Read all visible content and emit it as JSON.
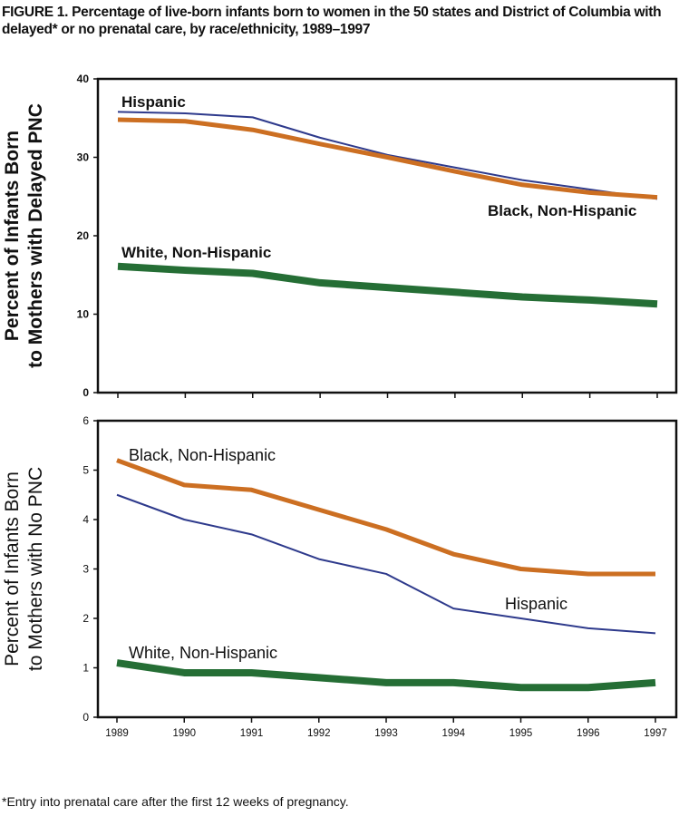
{
  "title": "FIGURE 1. Percentage of live-born infants born to women in the 50 states and District of Columbia with delayed* or no prenatal care, by race/ethnicity, 1989–1997",
  "footnote": "*Entry into prenatal care after the first 12 weeks of pregnancy.",
  "colors": {
    "hispanic": "#2e3a8c",
    "black": "#cc6f22",
    "white": "#256e35"
  },
  "chart_data": [
    {
      "type": "line",
      "ylabel": [
        "Percent of Infants Born",
        "to Mothers with Delayed PNC"
      ],
      "ylim": [
        0,
        40
      ],
      "yticks": [
        0,
        10,
        20,
        30,
        40
      ],
      "x": [
        1989,
        1990,
        1991,
        1992,
        1993,
        1994,
        1995,
        1996,
        1997
      ],
      "xtick_labels_shown": false,
      "grid": false,
      "series": [
        {
          "name": "Hispanic",
          "color": "#2e3a8c",
          "values": [
            35.8,
            35.6,
            35.1,
            32.5,
            30.3,
            28.7,
            27.1,
            25.9,
            24.7
          ]
        },
        {
          "name": "Black, Non-Hispanic",
          "color": "#cc6f22",
          "values": [
            34.8,
            34.6,
            33.5,
            31.7,
            30.0,
            28.2,
            26.5,
            25.5,
            24.9
          ]
        },
        {
          "name": "White, Non-Hispanic",
          "color": "#256e35",
          "values": [
            16.1,
            15.6,
            15.2,
            14.0,
            13.4,
            12.8,
            12.2,
            11.8,
            11.3
          ]
        }
      ]
    },
    {
      "type": "line",
      "ylabel": [
        "Percent of Infants Born",
        "to Mothers with No PNC"
      ],
      "ylim": [
        0,
        6
      ],
      "yticks": [
        0,
        1,
        2,
        3,
        4,
        5,
        6
      ],
      "x": [
        1989,
        1990,
        1991,
        1992,
        1993,
        1994,
        1995,
        1996,
        1997
      ],
      "xtick_labels_shown": true,
      "grid": false,
      "series": [
        {
          "name": "Black, Non-Hispanic",
          "color": "#cc6f22",
          "values": [
            5.2,
            4.7,
            4.6,
            4.2,
            3.8,
            3.3,
            3.0,
            2.9,
            2.9
          ]
        },
        {
          "name": "Hispanic",
          "color": "#2e3a8c",
          "values": [
            4.5,
            4.0,
            3.7,
            3.2,
            2.9,
            2.2,
            2.0,
            1.8,
            1.7
          ]
        },
        {
          "name": "White, Non-Hispanic",
          "color": "#256e35",
          "values": [
            1.1,
            0.9,
            0.9,
            0.8,
            0.7,
            0.7,
            0.6,
            0.6,
            0.7
          ]
        }
      ]
    }
  ]
}
